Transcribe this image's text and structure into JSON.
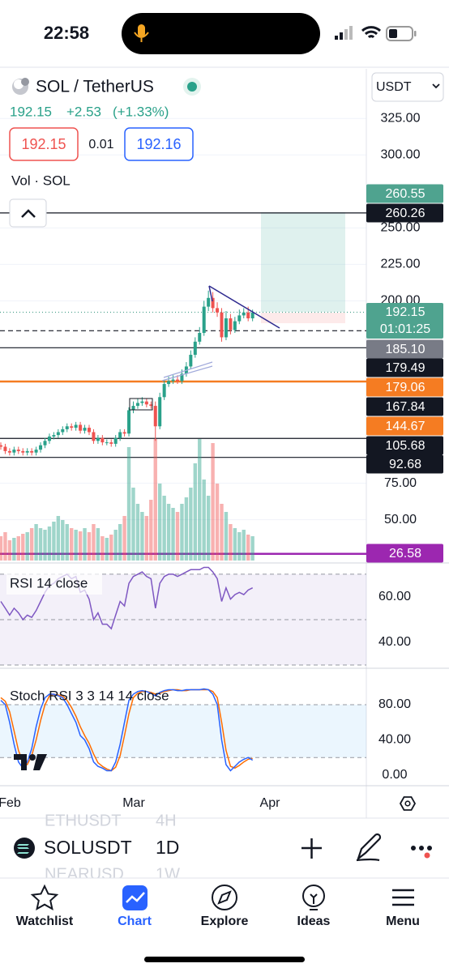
{
  "status_bar": {
    "time": "22:58"
  },
  "header": {
    "symbol": "SOL / TetherUS",
    "last": "192.15",
    "change": "+2.53",
    "change_pct": "(+1.33%)",
    "sell": "192.15",
    "spread": "0.01",
    "buy": "192.16",
    "volume_label": "Vol · SOL",
    "currency": "USDT"
  },
  "chart_data": {
    "type": "candlestick",
    "up_color": "#2aa18a",
    "down_color": "#ef5350",
    "open": [
      101,
      100,
      97,
      96,
      98,
      97,
      96,
      97,
      96,
      98,
      101,
      104,
      107,
      108,
      110,
      112,
      114,
      113,
      115,
      111,
      113,
      110,
      104,
      106,
      103,
      103,
      102,
      106,
      110,
      109,
      125,
      128,
      130,
      131,
      129,
      128,
      114,
      134,
      143,
      145,
      146,
      145,
      150,
      155,
      163,
      172,
      178,
      196,
      202,
      195,
      192,
      175,
      188,
      180,
      186,
      190,
      192,
      188
    ],
    "high": [
      103,
      102,
      99,
      100,
      100,
      99,
      99,
      99,
      100,
      103,
      106,
      109,
      110,
      112,
      114,
      116,
      116,
      117,
      117,
      115,
      115,
      112,
      108,
      108,
      105,
      105,
      108,
      112,
      112,
      127,
      131,
      133,
      134,
      133,
      131,
      131,
      137,
      146,
      148,
      149,
      149,
      153,
      158,
      166,
      175,
      182,
      200,
      207,
      206,
      199,
      195,
      193,
      191,
      189,
      194,
      195,
      196,
      194
    ],
    "low": [
      98,
      95,
      94,
      94,
      95,
      94,
      94,
      94,
      94,
      96,
      99,
      102,
      105,
      106,
      108,
      110,
      111,
      111,
      109,
      109,
      108,
      102,
      102,
      101,
      101,
      100,
      100,
      104,
      107,
      107,
      123,
      126,
      128,
      127,
      126,
      104,
      112,
      132,
      141,
      143,
      143,
      143,
      148,
      153,
      161,
      170,
      176,
      193,
      192,
      189,
      172,
      173,
      177,
      178,
      184,
      188,
      186,
      186
    ],
    "close": [
      100,
      97,
      96,
      98,
      97,
      96,
      97,
      96,
      98,
      101,
      104,
      107,
      108,
      110,
      112,
      114,
      113,
      115,
      111,
      113,
      110,
      104,
      106,
      103,
      103,
      102,
      106,
      110,
      109,
      125,
      128,
      130,
      131,
      129,
      128,
      114,
      134,
      143,
      145,
      146,
      145,
      150,
      155,
      163,
      172,
      178,
      196,
      202,
      195,
      192,
      175,
      188,
      180,
      186,
      190,
      192,
      188,
      192
    ],
    "volume": [
      30,
      35,
      25,
      28,
      30,
      33,
      35,
      40,
      45,
      40,
      38,
      42,
      48,
      55,
      50,
      45,
      40,
      38,
      36,
      40,
      35,
      45,
      40,
      30,
      28,
      32,
      38,
      45,
      55,
      140,
      90,
      70,
      60,
      55,
      75,
      150,
      95,
      80,
      70,
      65,
      60,
      70,
      78,
      90,
      120,
      150,
      100,
      80,
      145,
      95,
      70,
      60,
      45,
      40,
      35,
      38,
      32,
      30
    ],
    "ylim": [
      22,
      359
    ],
    "yticks": [
      {
        "value": 325,
        "label": "325.00"
      },
      {
        "value": 300,
        "label": "300.00"
      },
      {
        "value": 250,
        "label": "250.00"
      },
      {
        "value": 225,
        "label": "225.00"
      },
      {
        "value": 200,
        "label": "200.00"
      },
      {
        "value": 75,
        "label": "75.00"
      },
      {
        "value": 50,
        "label": "50.00"
      }
    ],
    "xticks": [
      "Feb",
      "Mar",
      "Apr"
    ],
    "grid": true,
    "price_tags": [
      {
        "value": 260.55,
        "color": "#4fa38f",
        "line": "none"
      },
      {
        "value": 260.26,
        "color": "#131722",
        "line": "solid"
      },
      {
        "value": 192.15,
        "color": "#4fa38f",
        "line": "dotted",
        "countdown": "01:01:25"
      },
      {
        "value": {
          "value": 185.1,
          "label": "185.10"
        },
        "color": "#787b86",
        "line": "none"
      },
      {
        "value": 179.49,
        "color": "#131722",
        "line": "dashed"
      },
      {
        "value": 179.06,
        "color": "#f57c22",
        "line": "none"
      },
      {
        "value": 167.84,
        "color": "#131722",
        "line": "solid"
      },
      {
        "value": 144.67,
        "color": "#f57c22",
        "line": "solid"
      },
      {
        "value": 105.68,
        "color": "#131722",
        "line": "solid"
      },
      {
        "value": 92.68,
        "color": "#131722",
        "line": "solid"
      },
      {
        "value": 26.58,
        "color": "#9c27b0",
        "line": "solid"
      }
    ],
    "rsi": {
      "title": "RSI 14 close",
      "color": "#7e57c2",
      "values": [
        58,
        55,
        52,
        55,
        53,
        50,
        52,
        51,
        54,
        58,
        62,
        65,
        66,
        68,
        69,
        70,
        68,
        69,
        62,
        63,
        59,
        50,
        53,
        48,
        48,
        46,
        52,
        58,
        56,
        66,
        69,
        70,
        71,
        69,
        68,
        55,
        66,
        69,
        70,
        70,
        69,
        70,
        71,
        72,
        72,
        72,
        73,
        73,
        71,
        68,
        58,
        64,
        59,
        61,
        62,
        61,
        63,
        64
      ],
      "ylim": [
        29.3,
        74.6
      ],
      "yticks": [
        {
          "value": 60,
          "label": "60.00"
        },
        {
          "value": 40,
          "label": "40.00"
        }
      ],
      "levels": [
        70,
        50,
        30
      ]
    },
    "stoch": {
      "title": "Stoch RSI 3 3 14 14 close",
      "k_color": "#2962ff",
      "d_color": "#ff6d00",
      "k": [
        85,
        80,
        60,
        35,
        15,
        8,
        15,
        30,
        55,
        75,
        88,
        92,
        92,
        90,
        88,
        80,
        70,
        60,
        45,
        40,
        30,
        15,
        10,
        8,
        5,
        5,
        15,
        35,
        60,
        85,
        92,
        95,
        96,
        95,
        93,
        90,
        94,
        96,
        97,
        97,
        96,
        96,
        97,
        97,
        97,
        97,
        98,
        97,
        92,
        80,
        40,
        12,
        5,
        10,
        15,
        18,
        20,
        17
      ],
      "d": [
        88,
        84,
        72,
        50,
        28,
        15,
        12,
        22,
        40,
        62,
        80,
        90,
        92,
        91,
        90,
        85,
        77,
        67,
        55,
        45,
        36,
        24,
        14,
        10,
        7,
        5,
        9,
        22,
        45,
        70,
        88,
        93,
        95,
        95,
        94,
        92,
        93,
        95,
        96,
        97,
        97,
        96,
        96,
        97,
        97,
        97,
        97,
        97,
        95,
        88,
        60,
        28,
        10,
        8,
        11,
        15,
        18,
        19
      ],
      "ylim": [
        -12,
        120.5
      ],
      "yticks": [
        {
          "value": 80,
          "label": "80.00"
        },
        {
          "value": 40,
          "label": "40.00"
        },
        {
          "value": 0,
          "label": "0.00"
        }
      ],
      "levels": [
        80,
        20
      ]
    }
  },
  "bottom_bar": {
    "symbol": "SOLUSDT",
    "interval": "1D",
    "ghost": [
      "ETHUSDT",
      "4H",
      "NEARUSD",
      "1W"
    ]
  },
  "tabs": [
    "Watchlist",
    "Chart",
    "Explore",
    "Ideas",
    "Menu"
  ]
}
